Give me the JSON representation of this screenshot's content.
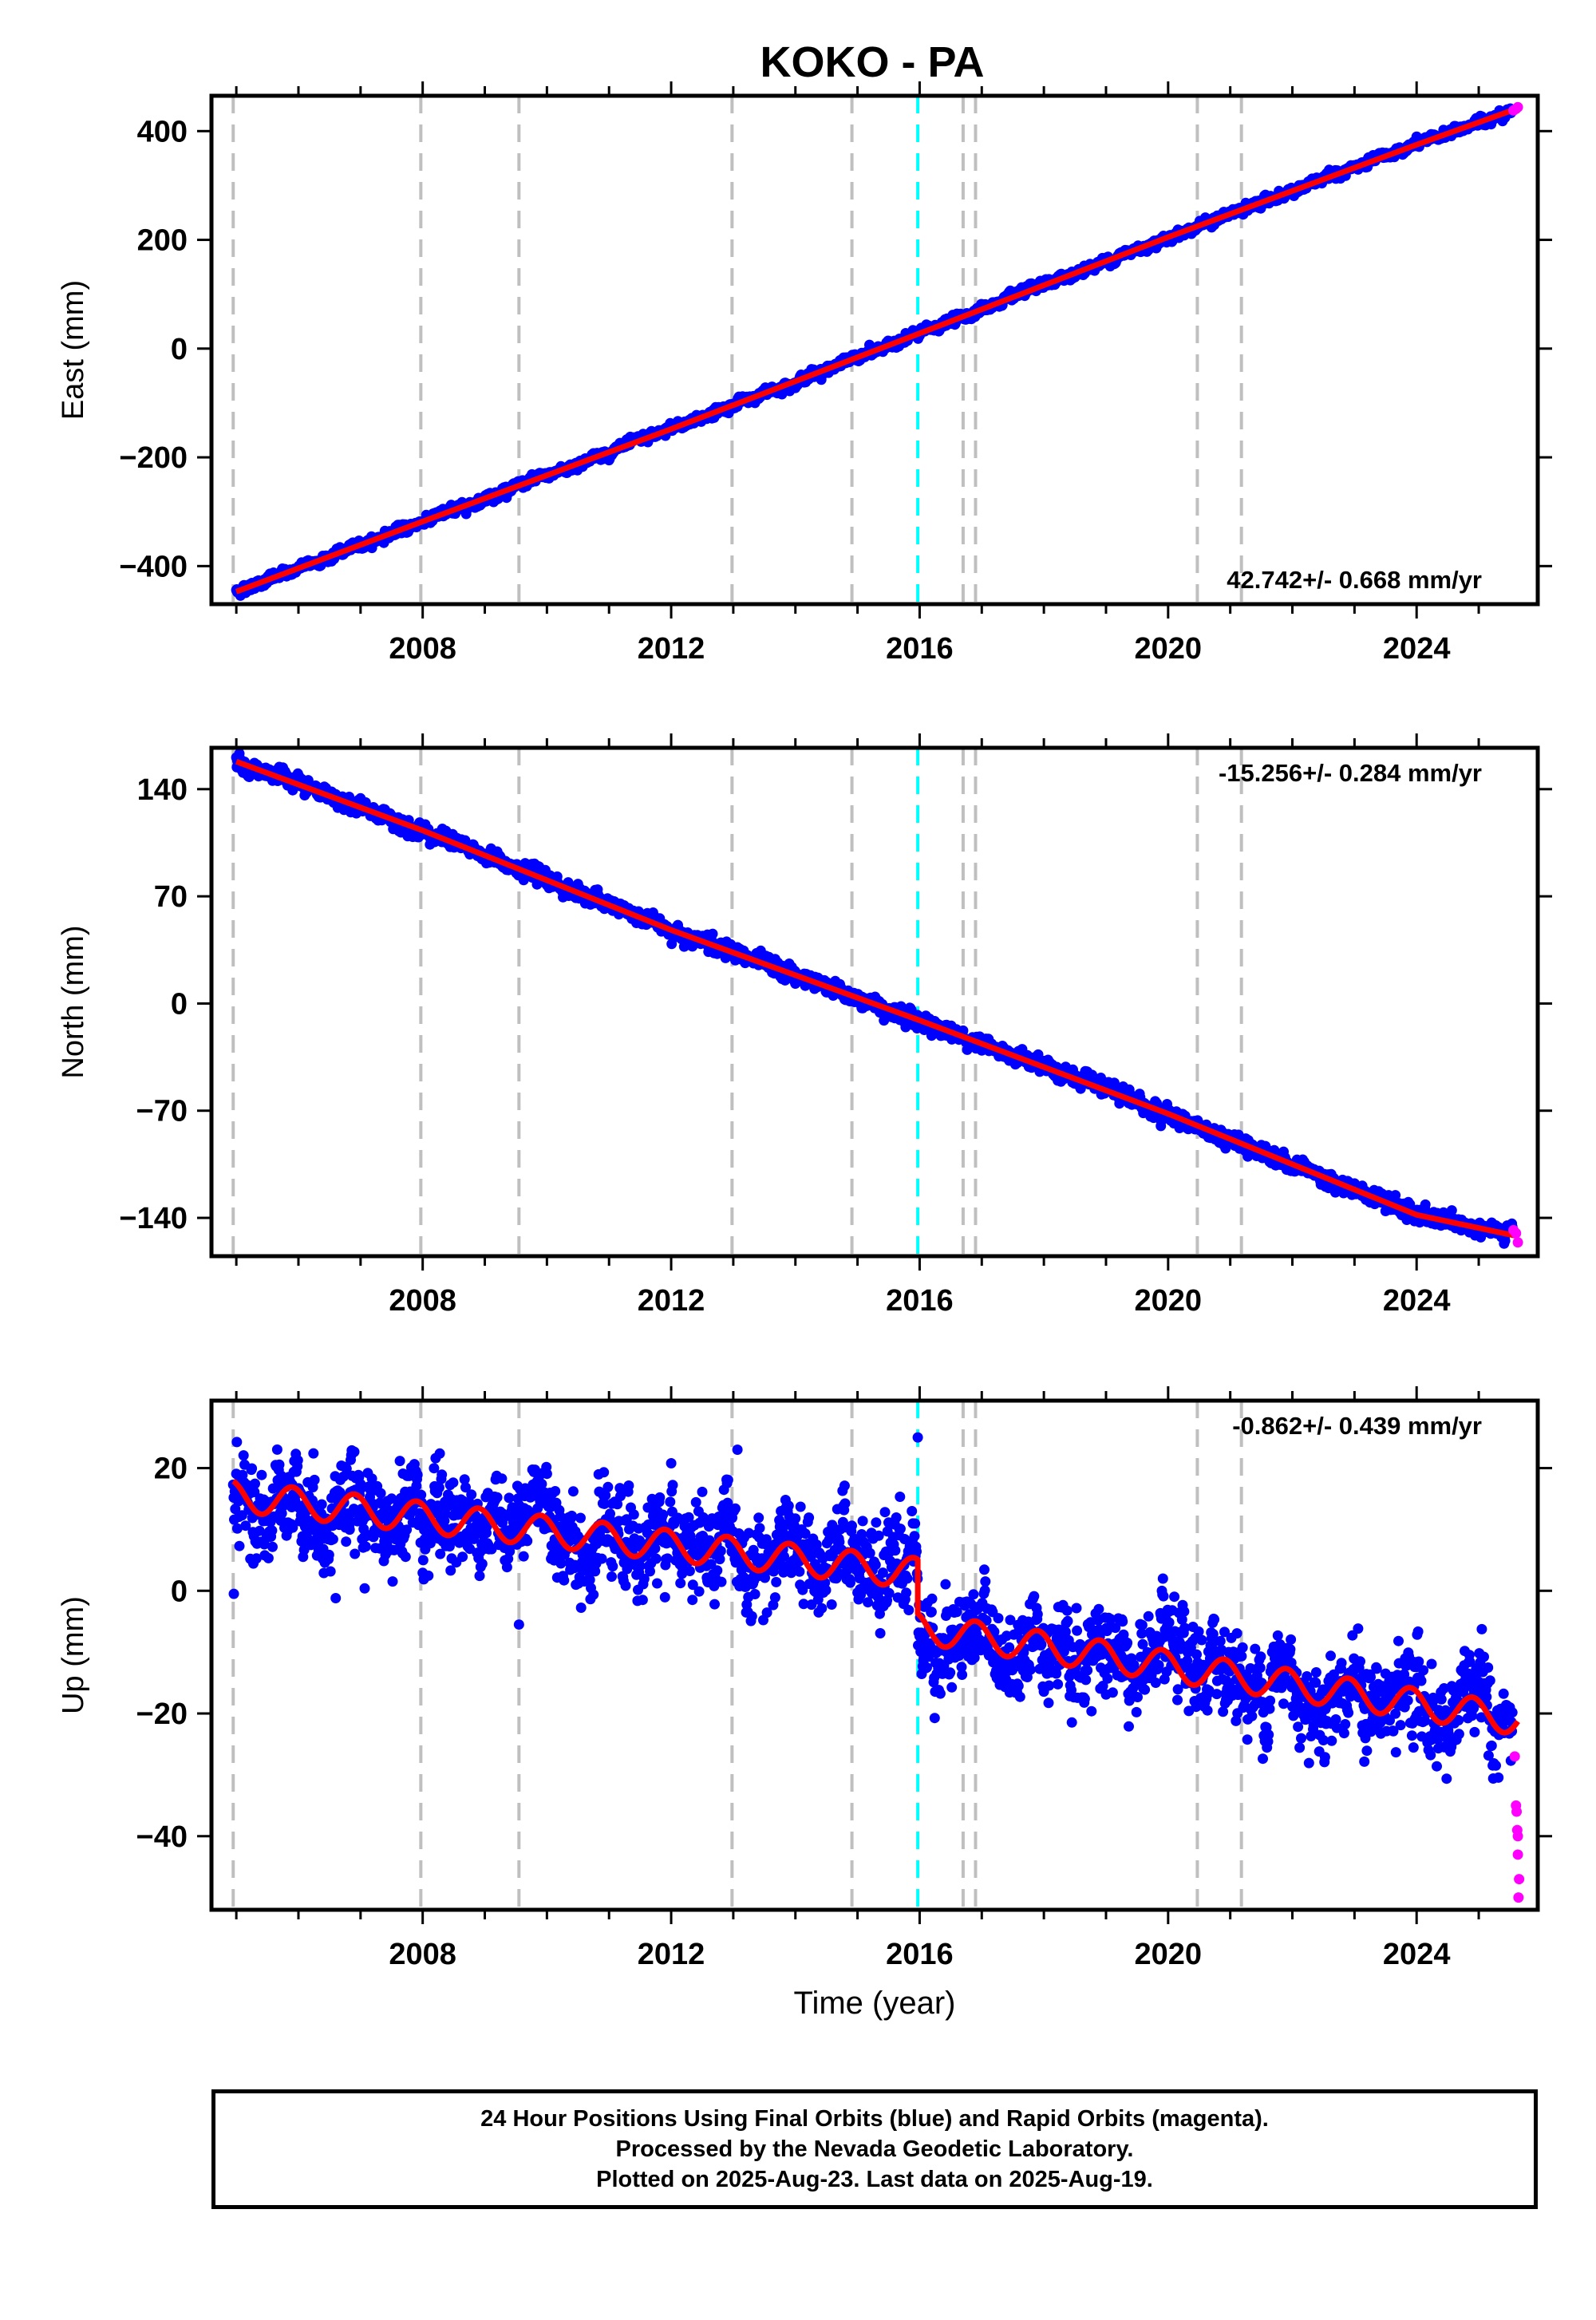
{
  "title": "KOKO - PA",
  "footer_lines": [
    "24 Hour Positions Using Final Orbits (blue) and Rapid Orbits (magenta).",
    "Processed by the Nevada Geodetic Laboratory.",
    "Plotted on 2025-Aug-23. Last data on 2025-Aug-19."
  ],
  "colors": {
    "final_orbits": "#0000ff",
    "rapid_orbits": "#ff00ff",
    "model_fit": "#ff0000",
    "equipment_change_line": "#bfbfbf",
    "earthquake_line": "#00ffff"
  },
  "chart_data": [
    {
      "type": "scatter",
      "name": "east",
      "ylabel": "East (mm)",
      "xlabel": "",
      "rate_label": "42.742+/- 0.668 mm/yr",
      "rate_position": "bottom-right",
      "xlim": [
        2004.6,
        2025.95
      ],
      "ylim": [
        -470,
        465
      ],
      "xticks": [
        2008,
        2012,
        2016,
        2020,
        2024
      ],
      "yticks": [
        400,
        200,
        0,
        -200,
        -400
      ],
      "ytick_labels": [
        "400",
        "200",
        "0",
        "−200",
        "−400"
      ],
      "series": [
        {
          "role": "fit",
          "x": [
            2005.0,
            2008.0,
            2012.0,
            2016.0,
            2020.0,
            2024.0,
            2025.63
          ],
          "y": [
            -447,
            -318,
            -148,
            28,
            205,
            375,
            442
          ]
        }
      ],
      "rapid_points": {
        "x": [
          2025.56,
          2025.6,
          2025.63
        ],
        "y": [
          438,
          441,
          444
        ]
      },
      "residual_scatter_mm": 5
    },
    {
      "type": "scatter",
      "name": "north",
      "ylabel": "North (mm)",
      "xlabel": "",
      "rate_label": "-15.256+/- 0.284 mm/yr",
      "rate_position": "top-right",
      "xlim": [
        2004.6,
        2025.95
      ],
      "ylim": [
        -165,
        167
      ],
      "xticks": [
        2008,
        2012,
        2016,
        2020,
        2024
      ],
      "yticks": [
        140,
        70,
        0,
        -70,
        -140
      ],
      "ytick_labels": [
        "140",
        "70",
        "0",
        "−70",
        "−140"
      ],
      "series": [
        {
          "role": "fit",
          "x": [
            2005.0,
            2008.0,
            2012.0,
            2016.0,
            2020.0,
            2024.0,
            2025.63
          ],
          "y": [
            158,
            113,
            48,
            -11,
            -72,
            -138,
            -152
          ]
        }
      ],
      "rapid_points": {
        "x": [
          2025.56,
          2025.6,
          2025.63
        ],
        "y": [
          -148,
          -150,
          -156
        ]
      },
      "residual_scatter_mm": 3
    },
    {
      "type": "scatter",
      "name": "up",
      "ylabel": "Up (mm)",
      "xlabel": "Time (year)",
      "rate_label": "-0.862+/- 0.439 mm/yr",
      "rate_position": "top-right",
      "xlim": [
        2004.6,
        2025.95
      ],
      "ylim": [
        -52,
        31
      ],
      "xticks": [
        2008,
        2012,
        2016,
        2020,
        2024
      ],
      "yticks": [
        20,
        0,
        -20,
        -40
      ],
      "ytick_labels": [
        "20",
        "0",
        "−20",
        "−40"
      ],
      "fit_model": {
        "start_year": 2004.95,
        "end_year": 2025.63,
        "offset_year": 2015.97,
        "value_before": 15.5,
        "rate_before": -1.15,
        "value_after": -6.0,
        "rate_after": -1.55,
        "seasonal_amplitude": 2.5
      },
      "rapid_points": {
        "x": [
          2025.58,
          2025.6,
          2025.61,
          2025.62,
          2025.63,
          2025.63,
          2025.64,
          2025.65
        ],
        "y": [
          -27,
          -35,
          -36,
          -39,
          -40,
          -43,
          -50,
          -47
        ]
      },
      "outliers": {
        "x": [
          2004.96,
          2006.6,
          2015.97,
          2009.55
        ],
        "y": [
          -0.5,
          -1.2,
          25,
          -5.5
        ]
      },
      "residual_scatter_mm": 4.5
    }
  ],
  "reference_lines": {
    "equipment_changes": [
      2004.95,
      2007.97,
      2009.55,
      2012.98,
      2014.91,
      2016.7,
      2016.9,
      2020.47,
      2021.18
    ],
    "earthquake": [
      2015.97
    ]
  }
}
